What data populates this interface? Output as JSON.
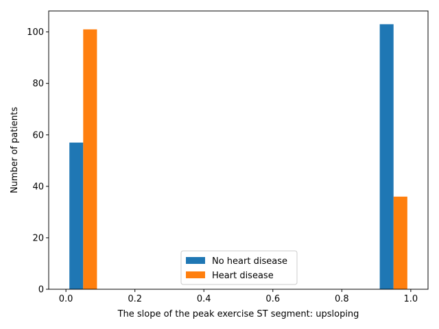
{
  "chart_data": {
    "type": "bar",
    "title": "",
    "xlabel": "The slope of the peak exercise ST segment: upsloping",
    "ylabel": "Number of patients",
    "xlim": [
      -0.05,
      1.05
    ],
    "ylim": [
      0,
      108.15
    ],
    "xticks": [
      "0.0",
      "0.2",
      "0.4",
      "0.6",
      "0.8",
      "1.0"
    ],
    "yticks": [
      "0",
      "20",
      "40",
      "60",
      "80",
      "100"
    ],
    "grid": false,
    "legend_position": "lower-center",
    "bin_width": 0.04,
    "series": [
      {
        "name": "No heart disease",
        "color": "#1f77b4",
        "bars": [
          {
            "x_start": 0.01,
            "value": 57
          },
          {
            "x_start": 0.91,
            "value": 103
          }
        ]
      },
      {
        "name": "Heart disease",
        "color": "#ff7f0e",
        "bars": [
          {
            "x_start": 0.05,
            "value": 101
          },
          {
            "x_start": 0.95,
            "value": 36
          }
        ]
      }
    ]
  }
}
